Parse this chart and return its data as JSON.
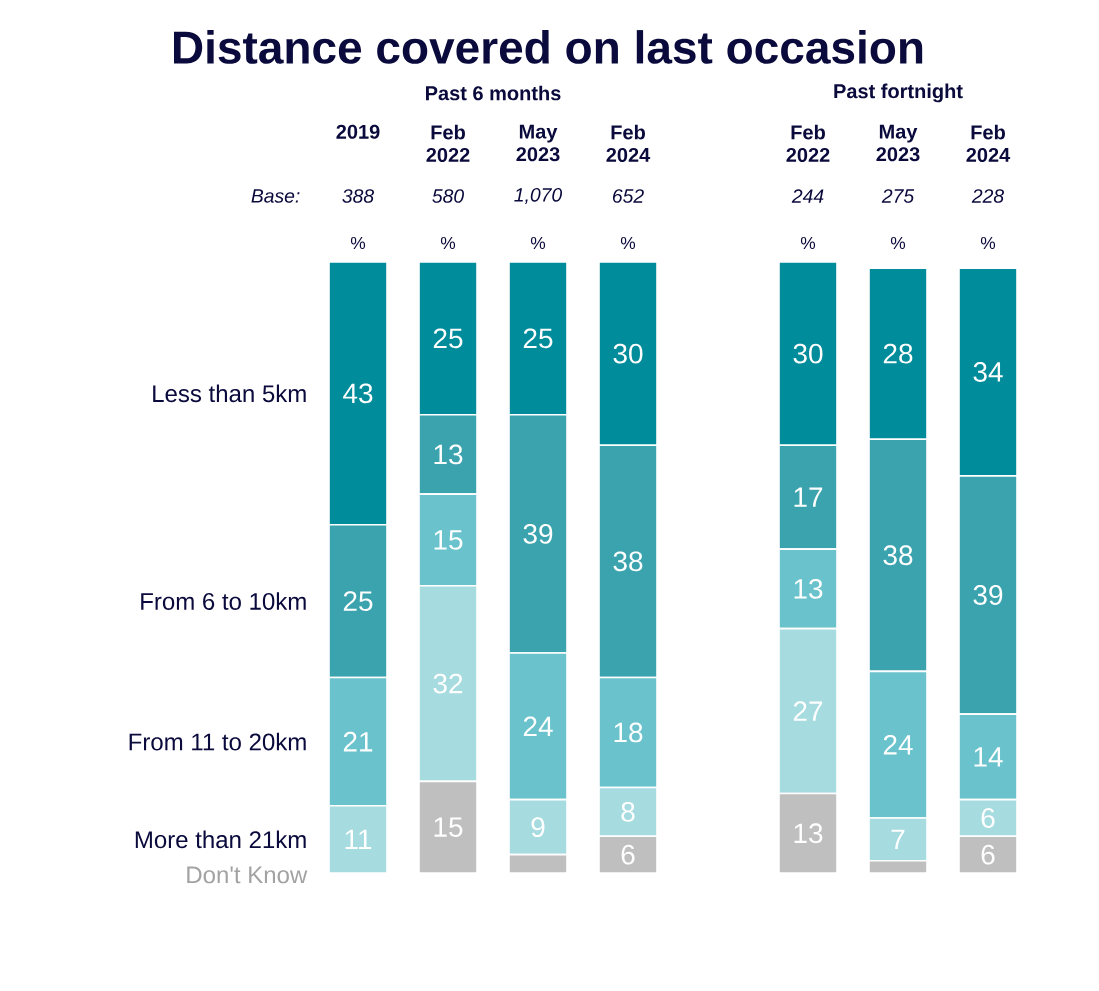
{
  "chart_data": {
    "type": "bar",
    "stacked": true,
    "title": "Distance covered on last occasion",
    "categories": [
      "2019",
      "Feb 2022",
      "May 2023",
      "Feb 2024",
      null,
      "Feb 2022",
      "May 2023",
      "Feb 2024"
    ],
    "series": [
      {
        "name": "Don't Know",
        "color": "#bfbfbf",
        "values": [
          0,
          15,
          3,
          6,
          null,
          13,
          2,
          6
        ],
        "value_labels": [
          null,
          "15",
          null,
          "6",
          null,
          "13",
          null,
          "6"
        ]
      },
      {
        "name": "More than 21km",
        "color": "#a6dbe0",
        "values": [
          11,
          32,
          9,
          8,
          null,
          27,
          7,
          6
        ],
        "value_labels": [
          "11",
          "32",
          "9",
          "8",
          null,
          "27",
          "7",
          "6"
        ]
      },
      {
        "name": "From 11 to 20km",
        "color": "#6ac3cc",
        "values": [
          21,
          15,
          24,
          18,
          null,
          13,
          24,
          14
        ],
        "value_labels": [
          "21",
          "15",
          "24",
          "18",
          null,
          "13",
          "24",
          "14"
        ]
      },
      {
        "name": "From 6 to 10km",
        "color": "#3ba3ae",
        "values": [
          25,
          13,
          39,
          38,
          null,
          17,
          38,
          39
        ],
        "value_labels": [
          "25",
          "13",
          "39",
          "38",
          null,
          "17",
          "38",
          "39"
        ]
      },
      {
        "name": "Less than 5km",
        "color": "#008c9a",
        "values": [
          43,
          25,
          25,
          30,
          null,
          30,
          28,
          34
        ],
        "value_labels": [
          "43",
          "25",
          "25",
          "30",
          null,
          "30",
          "28",
          "34"
        ]
      }
    ],
    "annotations": [
      "Past 6 months",
      "Past fortnight",
      "Base:",
      "388",
      "580",
      "1,070",
      "652",
      "244",
      "275",
      "228",
      "%",
      "%",
      "%",
      "%",
      "%",
      "%",
      "%"
    ]
  }
}
